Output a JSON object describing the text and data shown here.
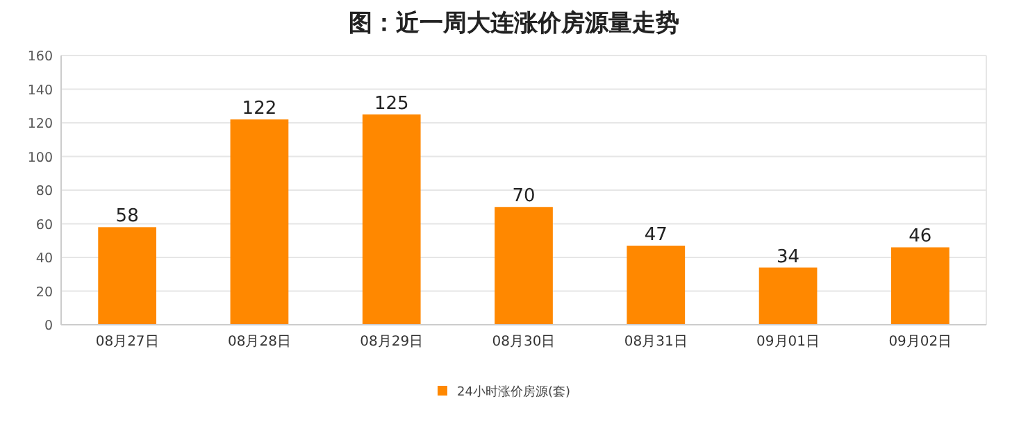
{
  "chart_data": {
    "type": "bar",
    "title": "图：近一周大连涨价房源量走势",
    "categories": [
      "08月27日",
      "08月28日",
      "08月29日",
      "08月30日",
      "08月31日",
      "09月01日",
      "09月02日"
    ],
    "series": [
      {
        "name": "24小时涨价房源(套)",
        "color": "#ff8800",
        "values": [
          58,
          122,
          125,
          70,
          47,
          34,
          46
        ]
      }
    ],
    "ylim": [
      0,
      160
    ],
    "yticks": [
      0,
      20,
      40,
      60,
      80,
      100,
      120,
      140,
      160
    ],
    "grid": "y",
    "legend": "bottom",
    "data_labels": true
  }
}
